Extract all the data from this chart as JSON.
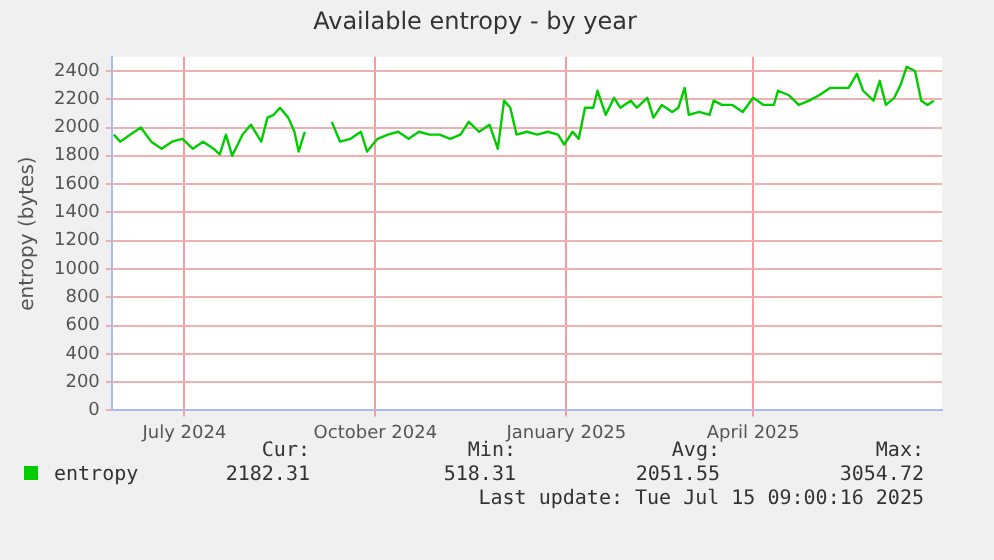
{
  "chart_data": {
    "type": "line",
    "title": "Available entropy - by year",
    "ylabel": "entropy (bytes)",
    "x": [
      "2024-06-11",
      "2024-06-14",
      "2024-06-19",
      "2024-06-24",
      "2024-06-29",
      "2024-07-04",
      "2024-07-09",
      "2024-07-14",
      "2024-07-19",
      "2024-07-24",
      "2024-07-29",
      "2024-08-01",
      "2024-08-04",
      "2024-08-07",
      "2024-08-12",
      "2024-08-16",
      "2024-08-21",
      "2024-08-24",
      "2024-08-27",
      "2024-08-30",
      "2024-09-03",
      "2024-09-06",
      "2024-09-08",
      "2024-09-11",
      "2024-09-18",
      "2024-09-24",
      "2024-09-28",
      "2024-10-03",
      "2024-10-08",
      "2024-10-11",
      "2024-10-16",
      "2024-10-21",
      "2024-10-26",
      "2024-10-31",
      "2024-11-05",
      "2024-11-10",
      "2024-11-15",
      "2024-11-20",
      "2024-11-25",
      "2024-11-29",
      "2024-12-04",
      "2024-12-09",
      "2024-12-13",
      "2024-12-16",
      "2024-12-19",
      "2024-12-22",
      "2024-12-27",
      "2025-01-01",
      "2025-01-06",
      "2025-01-11",
      "2025-01-14",
      "2025-01-18",
      "2025-01-21",
      "2025-01-24",
      "2025-01-28",
      "2025-01-30",
      "2025-02-03",
      "2025-02-07",
      "2025-02-10",
      "2025-02-15",
      "2025-02-18",
      "2025-02-23",
      "2025-02-26",
      "2025-03-02",
      "2025-03-07",
      "2025-03-10",
      "2025-03-13",
      "2025-03-15",
      "2025-03-20",
      "2025-03-25",
      "2025-03-27",
      "2025-03-31",
      "2025-04-05",
      "2025-04-10",
      "2025-04-15",
      "2025-04-20",
      "2025-04-25",
      "2025-04-27",
      "2025-05-02",
      "2025-05-07",
      "2025-05-12",
      "2025-05-17",
      "2025-05-22",
      "2025-05-26",
      "2025-05-31",
      "2025-06-04",
      "2025-06-07",
      "2025-06-12",
      "2025-06-15",
      "2025-06-18",
      "2025-06-22",
      "2025-06-25",
      "2025-06-28",
      "2025-07-02",
      "2025-07-05",
      "2025-07-08",
      "2025-07-11"
    ],
    "series": [
      {
        "name": "entropy",
        "color": "#00cc00",
        "values": [
          1950,
          1900,
          1950,
          2000,
          1900,
          1850,
          1900,
          1920,
          1850,
          1900,
          1850,
          1810,
          1950,
          1800,
          1950,
          2020,
          1900,
          2070,
          2090,
          2140,
          2070,
          1970,
          1830,
          1970,
          null,
          2040,
          1900,
          1920,
          1970,
          1830,
          1920,
          1950,
          1970,
          1920,
          1970,
          1950,
          1950,
          1920,
          1950,
          2040,
          1970,
          2020,
          1850,
          2190,
          2140,
          1950,
          1970,
          1950,
          1970,
          1950,
          1880,
          1970,
          1920,
          2140,
          2140,
          2260,
          2090,
          2210,
          2140,
          2190,
          2140,
          2210,
          2070,
          2160,
          2110,
          2140,
          2280,
          2090,
          2110,
          2090,
          2190,
          2160,
          2160,
          2110,
          2210,
          2160,
          2160,
          2260,
          2230,
          2160,
          2190,
          2230,
          2280,
          2280,
          2280,
          2380,
          2260,
          2190,
          2330,
          2160,
          2210,
          2300,
          2430,
          2400,
          2190,
          2160,
          2190
        ]
      }
    ],
    "xlim": [
      "2024-06-10",
      "2025-07-15"
    ],
    "xticks": [
      {
        "value": "2024-07-15",
        "label": "July 2024"
      },
      {
        "value": "2024-10-15",
        "label": "October 2024"
      },
      {
        "value": "2025-01-15",
        "label": "January 2025"
      },
      {
        "value": "2025-04-15",
        "label": "April 2025"
      }
    ],
    "ylim": [
      0,
      2500
    ],
    "yticks": [
      0,
      200,
      400,
      600,
      800,
      1000,
      1200,
      1400,
      1600,
      1800,
      2000,
      2200,
      2400
    ],
    "grid": true,
    "legend": "bottom",
    "marker": "none",
    "line_style": "solid",
    "annotations": [
      "Cur:",
      "Min:",
      "Avg:",
      "Max:",
      "2182.31",
      "518.31",
      "2051.55",
      "3054.72",
      "Last update:  Tue Jul 15 09:00:16 2025"
    ]
  }
}
